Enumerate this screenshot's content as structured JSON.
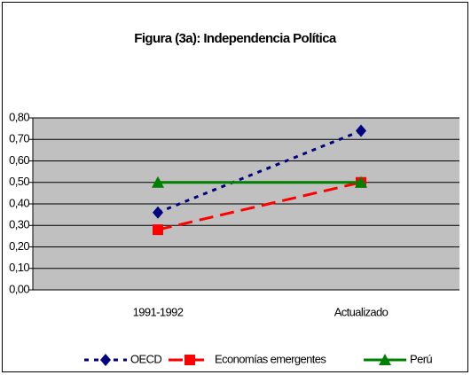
{
  "chart_data": {
    "type": "line",
    "title": "Figura (3a): Independencia Política",
    "categories": [
      "1991-1992",
      "Actualizado"
    ],
    "series": [
      {
        "name": "OECD",
        "color": "#000080",
        "dash": "dotted",
        "marker": "diamond",
        "values": [
          0.36,
          0.74
        ]
      },
      {
        "name": "Economías emergentes",
        "color": "#ff0000",
        "dash": "dashed",
        "marker": "square",
        "values": [
          0.28,
          0.5
        ]
      },
      {
        "name": "Perú",
        "color": "#008000",
        "dash": "solid",
        "marker": "triangle",
        "values": [
          0.5,
          0.5
        ]
      }
    ],
    "ylim": [
      0,
      0.8
    ],
    "yticks": [
      {
        "value": 0,
        "label": "0,00"
      },
      {
        "value": 0.1,
        "label": "0,10"
      },
      {
        "value": 0.2,
        "label": "0,20"
      },
      {
        "value": 0.3,
        "label": "0,30"
      },
      {
        "value": 0.4,
        "label": "0,40"
      },
      {
        "value": 0.5,
        "label": "0,50"
      },
      {
        "value": 0.6,
        "label": "0,60"
      },
      {
        "value": 0.7,
        "label": "0,70"
      },
      {
        "value": 0.8,
        "label": "0,80"
      }
    ],
    "grid": true,
    "legend": "bottom"
  }
}
